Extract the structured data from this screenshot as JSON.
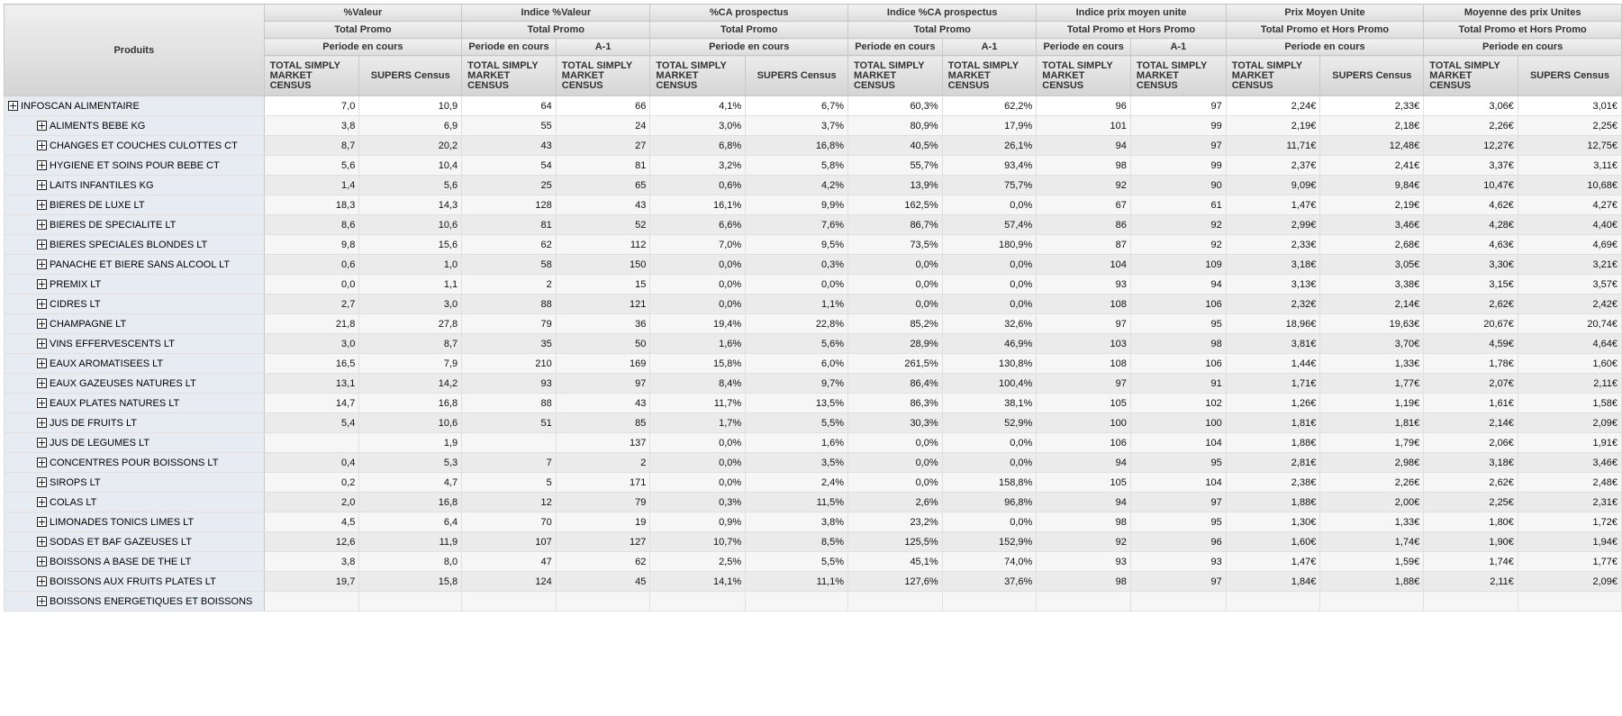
{
  "header": {
    "produits": "Produits",
    "groups": [
      {
        "title": "%Valeur",
        "scope": "Total Promo",
        "period": "Periode en cours",
        "cols": [
          "TOTAL SIMPLY MARKET CENSUS",
          "SUPERS Census"
        ]
      },
      {
        "title": "Indice %Valeur",
        "scope": "Total Promo",
        "periods": [
          "Periode en cours",
          "A-1"
        ],
        "cols": [
          "TOTAL SIMPLY MARKET CENSUS",
          "TOTAL SIMPLY MARKET CENSUS"
        ]
      },
      {
        "title": "%CA prospectus",
        "scope": "Total Promo",
        "period": "Periode en cours",
        "cols": [
          "TOTAL SIMPLY MARKET CENSUS",
          "SUPERS Census"
        ]
      },
      {
        "title": "Indice %CA prospectus",
        "scope": "Total Promo",
        "periods": [
          "Periode en cours",
          "A-1"
        ],
        "cols": [
          "TOTAL SIMPLY MARKET CENSUS",
          "TOTAL SIMPLY MARKET CENSUS"
        ]
      },
      {
        "title": "Indice prix moyen unite",
        "scope": "Total Promo et Hors Promo",
        "periods": [
          "Periode en cours",
          "A-1"
        ],
        "cols": [
          "TOTAL SIMPLY MARKET CENSUS",
          "TOTAL SIMPLY MARKET CENSUS"
        ]
      },
      {
        "title": "Prix Moyen Unite",
        "scope": "Total Promo et Hors Promo",
        "period": "Periode en cours",
        "cols": [
          "TOTAL SIMPLY MARKET CENSUS",
          "SUPERS Census"
        ]
      },
      {
        "title": "Moyenne des prix Unites",
        "scope": "Total Promo et Hors Promo",
        "period": "Periode en cours",
        "cols": [
          "TOTAL SIMPLY MARKET CENSUS",
          "SUPERS Census"
        ]
      }
    ]
  },
  "rows": [
    {
      "label": "INFOSCAN ALIMENTAIRE",
      "level": 0,
      "v": [
        "7,0",
        "10,9",
        "64",
        "66",
        "4,1%",
        "6,7%",
        "60,3%",
        "62,2%",
        "96",
        "97",
        "2,24€",
        "2,33€",
        "3,06€",
        "3,01€"
      ]
    },
    {
      "label": "ALIMENTS BEBE KG",
      "level": 1,
      "v": [
        "3,8",
        "6,9",
        "55",
        "24",
        "3,0%",
        "3,7%",
        "80,9%",
        "17,9%",
        "101",
        "99",
        "2,19€",
        "2,18€",
        "2,26€",
        "2,25€"
      ]
    },
    {
      "label": "CHANGES ET COUCHES CULOTTES CT",
      "level": 1,
      "v": [
        "8,7",
        "20,2",
        "43",
        "27",
        "6,8%",
        "16,8%",
        "40,5%",
        "26,1%",
        "94",
        "97",
        "11,71€",
        "12,48€",
        "12,27€",
        "12,75€"
      ]
    },
    {
      "label": "HYGIENE ET SOINS POUR BEBE CT",
      "level": 1,
      "v": [
        "5,6",
        "10,4",
        "54",
        "81",
        "3,2%",
        "5,8%",
        "55,7%",
        "93,4%",
        "98",
        "99",
        "2,37€",
        "2,41€",
        "3,37€",
        "3,11€"
      ]
    },
    {
      "label": "LAITS INFANTILES KG",
      "level": 1,
      "v": [
        "1,4",
        "5,6",
        "25",
        "65",
        "0,6%",
        "4,2%",
        "13,9%",
        "75,7%",
        "92",
        "90",
        "9,09€",
        "9,84€",
        "10,47€",
        "10,68€"
      ]
    },
    {
      "label": "BIERES DE LUXE LT",
      "level": 1,
      "v": [
        "18,3",
        "14,3",
        "128",
        "43",
        "16,1%",
        "9,9%",
        "162,5%",
        "0,0%",
        "67",
        "61",
        "1,47€",
        "2,19€",
        "4,62€",
        "4,27€"
      ]
    },
    {
      "label": "BIERES DE SPECIALITE LT",
      "level": 1,
      "v": [
        "8,6",
        "10,6",
        "81",
        "52",
        "6,6%",
        "7,6%",
        "86,7%",
        "57,4%",
        "86",
        "92",
        "2,99€",
        "3,46€",
        "4,28€",
        "4,40€"
      ]
    },
    {
      "label": "BIERES SPECIALES BLONDES LT",
      "level": 1,
      "v": [
        "9,8",
        "15,6",
        "62",
        "112",
        "7,0%",
        "9,5%",
        "73,5%",
        "180,9%",
        "87",
        "92",
        "2,33€",
        "2,68€",
        "4,63€",
        "4,69€"
      ]
    },
    {
      "label": "PANACHE ET BIERE SANS ALCOOL LT",
      "level": 1,
      "v": [
        "0,6",
        "1,0",
        "58",
        "150",
        "0,0%",
        "0,3%",
        "0,0%",
        "0,0%",
        "104",
        "109",
        "3,18€",
        "3,05€",
        "3,30€",
        "3,21€"
      ]
    },
    {
      "label": "PREMIX LT",
      "level": 1,
      "v": [
        "0,0",
        "1,1",
        "2",
        "15",
        "0,0%",
        "0,0%",
        "0,0%",
        "0,0%",
        "93",
        "94",
        "3,13€",
        "3,38€",
        "3,15€",
        "3,57€"
      ]
    },
    {
      "label": "CIDRES LT",
      "level": 1,
      "v": [
        "2,7",
        "3,0",
        "88",
        "121",
        "0,0%",
        "1,1%",
        "0,0%",
        "0,0%",
        "108",
        "106",
        "2,32€",
        "2,14€",
        "2,62€",
        "2,42€"
      ]
    },
    {
      "label": "CHAMPAGNE LT",
      "level": 1,
      "v": [
        "21,8",
        "27,8",
        "79",
        "36",
        "19,4%",
        "22,8%",
        "85,2%",
        "32,6%",
        "97",
        "95",
        "18,96€",
        "19,63€",
        "20,67€",
        "20,74€"
      ]
    },
    {
      "label": "VINS EFFERVESCENTS LT",
      "level": 1,
      "v": [
        "3,0",
        "8,7",
        "35",
        "50",
        "1,6%",
        "5,6%",
        "28,9%",
        "46,9%",
        "103",
        "98",
        "3,81€",
        "3,70€",
        "4,59€",
        "4,64€"
      ]
    },
    {
      "label": "EAUX AROMATISEES LT",
      "level": 1,
      "v": [
        "16,5",
        "7,9",
        "210",
        "169",
        "15,8%",
        "6,0%",
        "261,5%",
        "130,8%",
        "108",
        "106",
        "1,44€",
        "1,33€",
        "1,78€",
        "1,60€"
      ]
    },
    {
      "label": "EAUX GAZEUSES NATURES LT",
      "level": 1,
      "v": [
        "13,1",
        "14,2",
        "93",
        "97",
        "8,4%",
        "9,7%",
        "86,4%",
        "100,4%",
        "97",
        "91",
        "1,71€",
        "1,77€",
        "2,07€",
        "2,11€"
      ]
    },
    {
      "label": "EAUX PLATES NATURES LT",
      "level": 1,
      "v": [
        "14,7",
        "16,8",
        "88",
        "43",
        "11,7%",
        "13,5%",
        "86,3%",
        "38,1%",
        "105",
        "102",
        "1,26€",
        "1,19€",
        "1,61€",
        "1,58€"
      ]
    },
    {
      "label": "JUS DE FRUITS LT",
      "level": 1,
      "v": [
        "5,4",
        "10,6",
        "51",
        "85",
        "1,7%",
        "5,5%",
        "30,3%",
        "52,9%",
        "100",
        "100",
        "1,81€",
        "1,81€",
        "2,14€",
        "2,09€"
      ]
    },
    {
      "label": "JUS DE LEGUMES LT",
      "level": 1,
      "v": [
        "",
        "1,9",
        "",
        "137",
        "0,0%",
        "1,6%",
        "0,0%",
        "0,0%",
        "106",
        "104",
        "1,88€",
        "1,79€",
        "2,06€",
        "1,91€"
      ]
    },
    {
      "label": "CONCENTRES POUR BOISSONS LT",
      "level": 1,
      "v": [
        "0,4",
        "5,3",
        "7",
        "2",
        "0,0%",
        "3,5%",
        "0,0%",
        "0,0%",
        "94",
        "95",
        "2,81€",
        "2,98€",
        "3,18€",
        "3,46€"
      ]
    },
    {
      "label": "SIROPS LT",
      "level": 1,
      "v": [
        "0,2",
        "4,7",
        "5",
        "171",
        "0,0%",
        "2,4%",
        "0,0%",
        "158,8%",
        "105",
        "104",
        "2,38€",
        "2,26€",
        "2,62€",
        "2,48€"
      ]
    },
    {
      "label": "COLAS LT",
      "level": 1,
      "v": [
        "2,0",
        "16,8",
        "12",
        "79",
        "0,3%",
        "11,5%",
        "2,6%",
        "96,8%",
        "94",
        "97",
        "1,88€",
        "2,00€",
        "2,25€",
        "2,31€"
      ]
    },
    {
      "label": "LIMONADES TONICS LIMES LT",
      "level": 1,
      "v": [
        "4,5",
        "6,4",
        "70",
        "19",
        "0,9%",
        "3,8%",
        "23,2%",
        "0,0%",
        "98",
        "95",
        "1,30€",
        "1,33€",
        "1,80€",
        "1,72€"
      ]
    },
    {
      "label": "SODAS ET BAF GAZEUSES LT",
      "level": 1,
      "v": [
        "12,6",
        "11,9",
        "107",
        "127",
        "10,7%",
        "8,5%",
        "125,5%",
        "152,9%",
        "92",
        "96",
        "1,60€",
        "1,74€",
        "1,90€",
        "1,94€"
      ]
    },
    {
      "label": "BOISSONS A BASE DE THE LT",
      "level": 1,
      "v": [
        "3,8",
        "8,0",
        "47",
        "62",
        "2,5%",
        "5,5%",
        "45,1%",
        "74,0%",
        "93",
        "93",
        "1,47€",
        "1,59€",
        "1,74€",
        "1,77€"
      ]
    },
    {
      "label": "BOISSONS AUX FRUITS PLATES LT",
      "level": 1,
      "v": [
        "19,7",
        "15,8",
        "124",
        "45",
        "14,1%",
        "11,1%",
        "127,6%",
        "37,6%",
        "98",
        "97",
        "1,84€",
        "1,88€",
        "2,11€",
        "2,09€"
      ]
    },
    {
      "label": "BOISSONS ENERGETIQUES ET BOISSONS",
      "level": 1,
      "v": [
        "",
        "",
        "",
        "",
        "",
        "",
        "",
        "",
        "",
        "",
        "",
        "",
        "",
        ""
      ]
    }
  ]
}
